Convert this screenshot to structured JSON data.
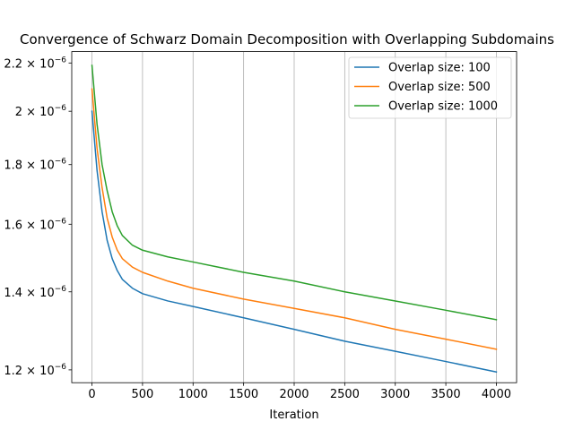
{
  "chart_data": {
    "type": "line",
    "title": "Convergence of Schwarz Domain Decomposition with Overlapping Subdomains",
    "xlabel": "Iteration",
    "ylabel": "",
    "yscale": "log",
    "xlim": [
      -200,
      4200
    ],
    "ylim": [
      1.17e-06,
      2.25e-06
    ],
    "grid": "vertical",
    "legend_position": "top-right",
    "x_ticks": [
      0,
      500,
      1000,
      1500,
      2000,
      2500,
      3000,
      3500,
      4000
    ],
    "x_tick_labels": [
      "0",
      "500",
      "1000",
      "1500",
      "2000",
      "2500",
      "3000",
      "3500",
      "4000"
    ],
    "y_ticks": [
      1.2e-06,
      1.4e-06,
      1.6e-06,
      1.8e-06,
      2e-06,
      2.2e-06
    ],
    "y_tick_labels": [
      {
        "mantissa": "1.2",
        "base": "10",
        "exp": "−6"
      },
      {
        "mantissa": "1.4",
        "base": "10",
        "exp": "−6"
      },
      {
        "mantissa": "1.6",
        "base": "10",
        "exp": "−6"
      },
      {
        "mantissa": "1.8",
        "base": "10",
        "exp": "−6"
      },
      {
        "mantissa": "2",
        "base": "10",
        "exp": "−6"
      },
      {
        "mantissa": "2.2",
        "base": "10",
        "exp": "−6"
      }
    ],
    "x": [
      0,
      50,
      100,
      150,
      200,
      250,
      300,
      400,
      500,
      750,
      1000,
      1500,
      2000,
      2500,
      3000,
      3500,
      4000
    ],
    "series": [
      {
        "name": "Overlap size: 100",
        "color": "#1f77b4",
        "values": [
          2e-06,
          1.78e-06,
          1.64e-06,
          1.55e-06,
          1.495e-06,
          1.46e-06,
          1.435e-06,
          1.41e-06,
          1.395e-06,
          1.375e-06,
          1.36e-06,
          1.33e-06,
          1.3e-06,
          1.27e-06,
          1.245e-06,
          1.22e-06,
          1.195e-06
        ]
      },
      {
        "name": "Overlap size: 500",
        "color": "#ff7f0e",
        "values": [
          2.09e-06,
          1.86e-06,
          1.72e-06,
          1.62e-06,
          1.56e-06,
          1.52e-06,
          1.495e-06,
          1.47e-06,
          1.455e-06,
          1.43e-06,
          1.41e-06,
          1.38e-06,
          1.355e-06,
          1.33e-06,
          1.3e-06,
          1.275e-06,
          1.25e-06
        ]
      },
      {
        "name": "Overlap size: 1000",
        "color": "#2ca02c",
        "values": [
          2.19e-06,
          1.95e-06,
          1.8e-06,
          1.71e-06,
          1.64e-06,
          1.595e-06,
          1.565e-06,
          1.535e-06,
          1.52e-06,
          1.5e-06,
          1.485e-06,
          1.455e-06,
          1.43e-06,
          1.4e-06,
          1.375e-06,
          1.35e-06,
          1.325e-06
        ]
      }
    ]
  }
}
